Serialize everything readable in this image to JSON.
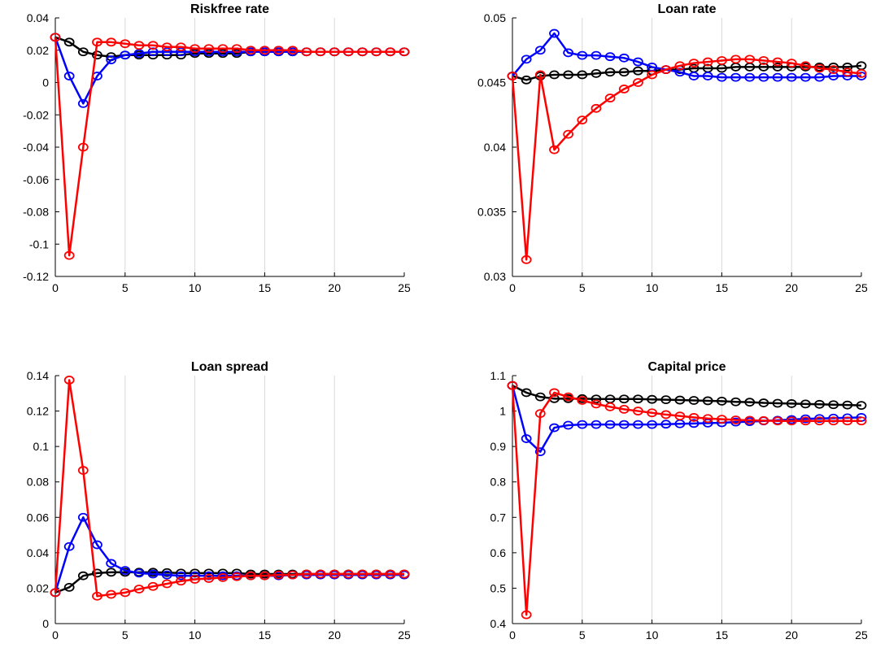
{
  "chart_data": [
    {
      "type": "line",
      "title": "Riskfree rate",
      "xlabel": "",
      "ylabel": "",
      "xlim": [
        0,
        25
      ],
      "ylim": [
        -0.12,
        0.04
      ],
      "xticks": [
        0,
        5,
        10,
        15,
        20,
        25
      ],
      "xtick_labels": [
        "0",
        "5",
        "10",
        "15",
        "20",
        "25"
      ],
      "yticks": [
        -0.12,
        -0.1,
        -0.08,
        -0.06,
        -0.04,
        -0.02,
        0,
        0.02,
        0.04
      ],
      "ytick_labels": [
        "-0.12",
        "-0.1",
        "-0.08",
        "-0.06",
        "-0.04",
        "-0.02",
        "0",
        "0.02",
        "0.04"
      ],
      "grid": "vertical",
      "x": [
        0,
        1,
        2,
        3,
        4,
        5,
        6,
        7,
        8,
        9,
        10,
        11,
        12,
        13,
        14,
        15,
        16,
        17,
        18,
        19,
        20,
        21,
        22,
        23,
        24,
        25
      ],
      "series": [
        {
          "color": "#000000",
          "values": [
            0.028,
            0.025,
            0.019,
            0.017,
            0.016,
            0.017,
            0.017,
            0.017,
            0.017,
            0.017,
            0.018,
            0.018,
            0.018,
            0.018,
            0.019,
            0.019,
            0.019,
            0.019,
            0.019,
            0.019,
            0.019,
            0.019,
            0.019,
            0.019,
            0.019,
            0.019
          ]
        },
        {
          "color": "#0000ff",
          "values": [
            0.028,
            0.004,
            -0.013,
            0.004,
            0.014,
            0.017,
            0.018,
            0.019,
            0.019,
            0.019,
            0.019,
            0.019,
            0.019,
            0.019,
            0.019,
            0.019,
            0.019,
            0.019,
            0.019,
            0.019,
            0.019,
            0.019,
            0.019,
            0.019,
            0.019,
            0.019
          ]
        },
        {
          "color": "#ff0000",
          "values": [
            0.028,
            -0.107,
            -0.04,
            0.025,
            0.025,
            0.024,
            0.023,
            0.023,
            0.022,
            0.022,
            0.021,
            0.021,
            0.021,
            0.021,
            0.02,
            0.02,
            0.02,
            0.02,
            0.019,
            0.019,
            0.019,
            0.019,
            0.019,
            0.019,
            0.019,
            0.019
          ]
        }
      ]
    },
    {
      "type": "line",
      "title": "Loan rate",
      "xlabel": "",
      "ylabel": "",
      "xlim": [
        0,
        25
      ],
      "ylim": [
        0.03,
        0.05
      ],
      "xticks": [
        0,
        5,
        10,
        15,
        20,
        25
      ],
      "xtick_labels": [
        "0",
        "5",
        "10",
        "15",
        "20",
        "25"
      ],
      "yticks": [
        0.03,
        0.035,
        0.04,
        0.045,
        0.05
      ],
      "ytick_labels": [
        "0.03",
        "0.035",
        "0.04",
        "0.045",
        "0.05"
      ],
      "grid": "vertical",
      "x": [
        0,
        1,
        2,
        3,
        4,
        5,
        6,
        7,
        8,
        9,
        10,
        11,
        12,
        13,
        14,
        15,
        16,
        17,
        18,
        19,
        20,
        21,
        22,
        23,
        24,
        25
      ],
      "series": [
        {
          "color": "#000000",
          "values": [
            0.0455,
            0.0452,
            0.0455,
            0.0456,
            0.0456,
            0.0456,
            0.0457,
            0.0458,
            0.0458,
            0.0459,
            0.0459,
            0.046,
            0.046,
            0.0461,
            0.0461,
            0.0461,
            0.0462,
            0.0462,
            0.0462,
            0.0462,
            0.0462,
            0.0462,
            0.0462,
            0.0462,
            0.0462,
            0.0463
          ]
        },
        {
          "color": "#0000ff",
          "values": [
            0.0455,
            0.0468,
            0.0475,
            0.0488,
            0.0473,
            0.0471,
            0.0471,
            0.047,
            0.0469,
            0.0466,
            0.0462,
            0.046,
            0.0458,
            0.0455,
            0.0455,
            0.0454,
            0.0454,
            0.0454,
            0.0454,
            0.0454,
            0.0454,
            0.0454,
            0.0454,
            0.0455,
            0.0455,
            0.0455
          ]
        },
        {
          "color": "#ff0000",
          "values": [
            0.0455,
            0.0313,
            0.0456,
            0.0398,
            0.041,
            0.0421,
            0.043,
            0.0438,
            0.0445,
            0.045,
            0.0456,
            0.046,
            0.0463,
            0.0465,
            0.0466,
            0.0467,
            0.0468,
            0.0468,
            0.0467,
            0.0466,
            0.0465,
            0.0463,
            0.0461,
            0.046,
            0.0458,
            0.0457
          ]
        }
      ]
    },
    {
      "type": "line",
      "title": "Loan spread",
      "xlabel": "",
      "ylabel": "",
      "xlim": [
        0,
        25
      ],
      "ylim": [
        0,
        0.14
      ],
      "xticks": [
        0,
        5,
        10,
        15,
        20,
        25
      ],
      "xtick_labels": [
        "0",
        "5",
        "10",
        "15",
        "20",
        "25"
      ],
      "yticks": [
        0,
        0.02,
        0.04,
        0.06,
        0.08,
        0.1,
        0.12,
        0.14
      ],
      "ytick_labels": [
        "0",
        "0.02",
        "0.04",
        "0.06",
        "0.08",
        "0.1",
        "0.12",
        "0.14"
      ],
      "grid": "vertical",
      "x": [
        0,
        1,
        2,
        3,
        4,
        5,
        6,
        7,
        8,
        9,
        10,
        11,
        12,
        13,
        14,
        15,
        16,
        17,
        18,
        19,
        20,
        21,
        22,
        23,
        24,
        25
      ],
      "series": [
        {
          "color": "#000000",
          "values": [
            0.0175,
            0.0205,
            0.027,
            0.0285,
            0.029,
            0.029,
            0.029,
            0.029,
            0.0288,
            0.0285,
            0.0285,
            0.0285,
            0.0285,
            0.0285,
            0.028,
            0.028,
            0.028,
            0.028,
            0.028,
            0.028,
            0.028,
            0.028,
            0.028,
            0.028,
            0.028,
            0.028
          ]
        },
        {
          "color": "#0000ff",
          "values": [
            0.0175,
            0.0435,
            0.06,
            0.0445,
            0.034,
            0.03,
            0.0285,
            0.028,
            0.0275,
            0.027,
            0.027,
            0.027,
            0.027,
            0.027,
            0.027,
            0.027,
            0.027,
            0.0275,
            0.0275,
            0.0275,
            0.0275,
            0.0275,
            0.0275,
            0.0275,
            0.0275,
            0.0275
          ]
        },
        {
          "color": "#ff0000",
          "values": [
            0.0175,
            0.1375,
            0.0865,
            0.0155,
            0.0165,
            0.0175,
            0.0195,
            0.021,
            0.0225,
            0.024,
            0.025,
            0.0255,
            0.026,
            0.0265,
            0.027,
            0.027,
            0.0275,
            0.0275,
            0.028,
            0.028,
            0.028,
            0.028,
            0.028,
            0.028,
            0.028,
            0.028
          ]
        }
      ]
    },
    {
      "type": "line",
      "title": "Capital price",
      "xlabel": "",
      "ylabel": "",
      "xlim": [
        0,
        25
      ],
      "ylim": [
        0.4,
        1.1
      ],
      "xticks": [
        0,
        5,
        10,
        15,
        20,
        25
      ],
      "xtick_labels": [
        "0",
        "5",
        "10",
        "15",
        "20",
        "25"
      ],
      "yticks": [
        0.4,
        0.5,
        0.6,
        0.7,
        0.8,
        0.9,
        1,
        1.1
      ],
      "ytick_labels": [
        "0.4",
        "0.5",
        "0.6",
        "0.7",
        "0.8",
        "0.9",
        "1",
        "1.1"
      ],
      "grid": "vertical",
      "x": [
        0,
        1,
        2,
        3,
        4,
        5,
        6,
        7,
        8,
        9,
        10,
        11,
        12,
        13,
        14,
        15,
        16,
        17,
        18,
        19,
        20,
        21,
        22,
        23,
        24,
        25
      ],
      "series": [
        {
          "color": "#000000",
          "values": [
            1.072,
            1.052,
            1.04,
            1.035,
            1.035,
            1.035,
            1.034,
            1.034,
            1.034,
            1.034,
            1.033,
            1.032,
            1.031,
            1.03,
            1.029,
            1.028,
            1.026,
            1.025,
            1.023,
            1.022,
            1.021,
            1.02,
            1.019,
            1.018,
            1.017,
            1.016
          ]
        },
        {
          "color": "#0000ff",
          "values": [
            1.072,
            0.922,
            0.885,
            0.953,
            0.96,
            0.962,
            0.962,
            0.962,
            0.962,
            0.962,
            0.962,
            0.963,
            0.964,
            0.965,
            0.966,
            0.967,
            0.969,
            0.97,
            0.972,
            0.974,
            0.976,
            0.978,
            0.979,
            0.98,
            0.981,
            0.982
          ]
        },
        {
          "color": "#ff0000",
          "values": [
            1.072,
            0.425,
            0.993,
            1.052,
            1.04,
            1.03,
            1.02,
            1.012,
            1.005,
            1.0,
            0.995,
            0.99,
            0.986,
            0.982,
            0.979,
            0.977,
            0.975,
            0.974,
            0.973,
            0.972,
            0.972,
            0.972,
            0.972,
            0.972,
            0.972,
            0.972
          ]
        }
      ]
    }
  ]
}
